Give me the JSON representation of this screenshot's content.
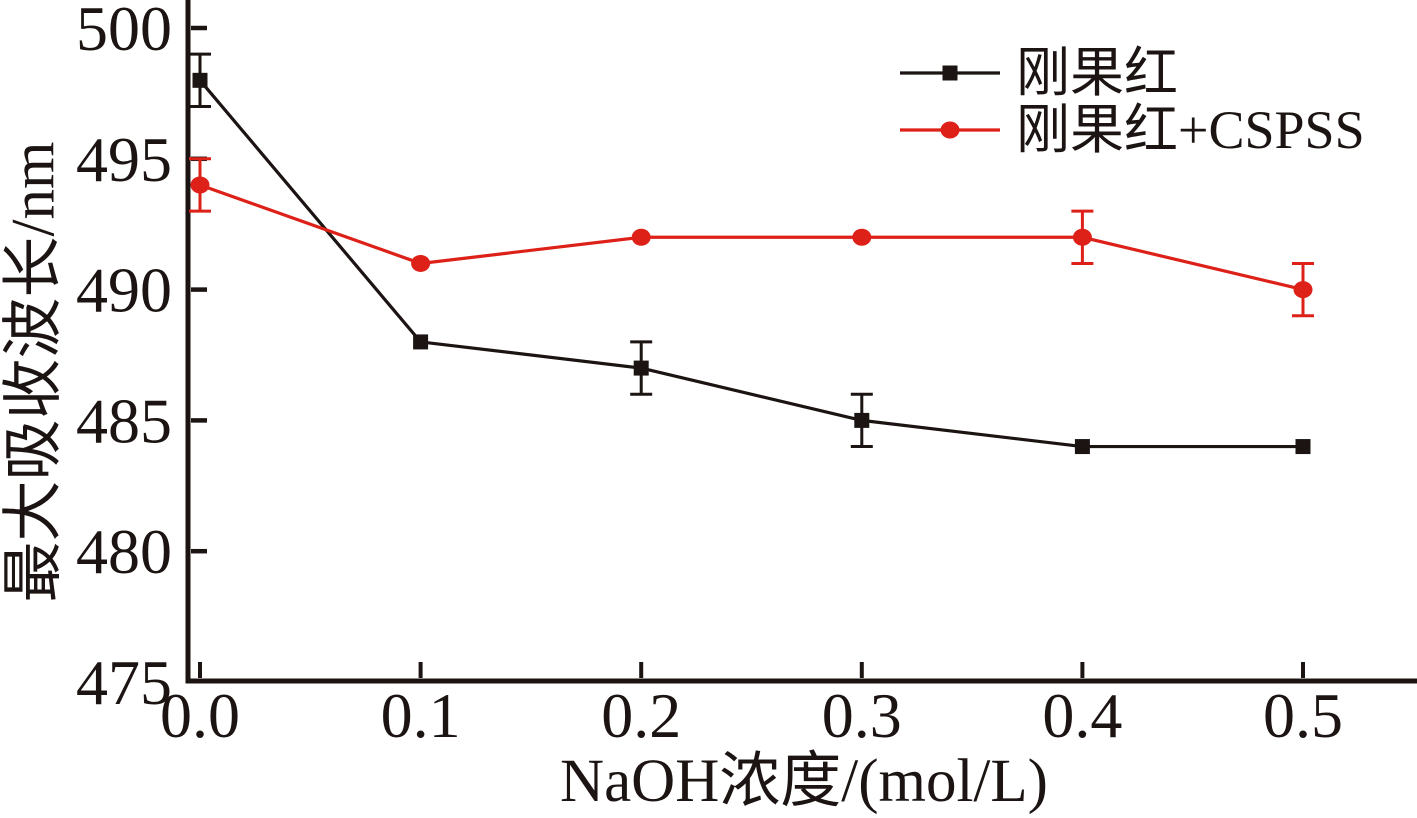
{
  "figure": {
    "background": "#ffffff",
    "ink_color": "#1b1412"
  },
  "chart_data": {
    "type": "line",
    "title": "",
    "xlabel": "NaOH浓度/(mol/L)",
    "ylabel": "最大吸收波长/nm",
    "x": [
      0.0,
      0.1,
      0.2,
      0.3,
      0.4,
      0.5
    ],
    "x_tick_labels": [
      "0.0",
      "0.1",
      "0.2",
      "0.3",
      "0.4",
      "0.5"
    ],
    "y_ticks": [
      475,
      480,
      485,
      490,
      495,
      500
    ],
    "xlim": [
      0.0,
      0.5
    ],
    "ylim": [
      475,
      500
    ],
    "grid": false,
    "error_bars": true,
    "legend_position": "inside-top-right",
    "series": [
      {
        "name": "刚果红",
        "color": "#1b1412",
        "marker": "square",
        "values": [
          498,
          488,
          487,
          485,
          484,
          484
        ],
        "errors": [
          1,
          0,
          1,
          1,
          0,
          0
        ]
      },
      {
        "name": "刚果红+CSPSS",
        "color": "#dd2018",
        "marker": "circle",
        "values": [
          494,
          491,
          492,
          492,
          492,
          490
        ],
        "errors": [
          1,
          0,
          0,
          0,
          1,
          1
        ]
      }
    ]
  }
}
